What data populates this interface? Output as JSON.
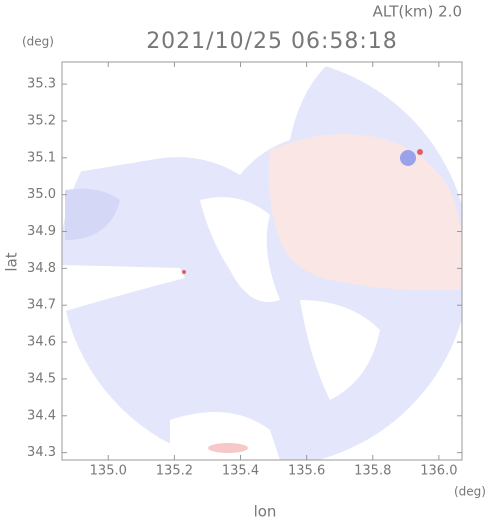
{
  "chart_data": {
    "type": "radar-map",
    "title": "2021/10/25 06:58:18",
    "annotation": "ALT(km) 2.0",
    "x_label": "lon",
    "x_unit": "(deg)",
    "y_label": "lat",
    "y_unit": "(deg)",
    "xlim": [
      134.86,
      136.07
    ],
    "xticks": [
      {
        "value": 135.0,
        "label": "135.0"
      },
      135.2,
      135.4,
      135.6,
      135.8,
      {
        "value": 136.0,
        "label": "136.0"
      }
    ],
    "ylim": [
      34.28,
      35.36
    ],
    "yticks": [
      34.3,
      34.4,
      34.5,
      34.6,
      34.7,
      34.8,
      34.9,
      {
        "value": 35.0,
        "label": "35.0"
      },
      35.1,
      35.2,
      35.3
    ]
  }
}
